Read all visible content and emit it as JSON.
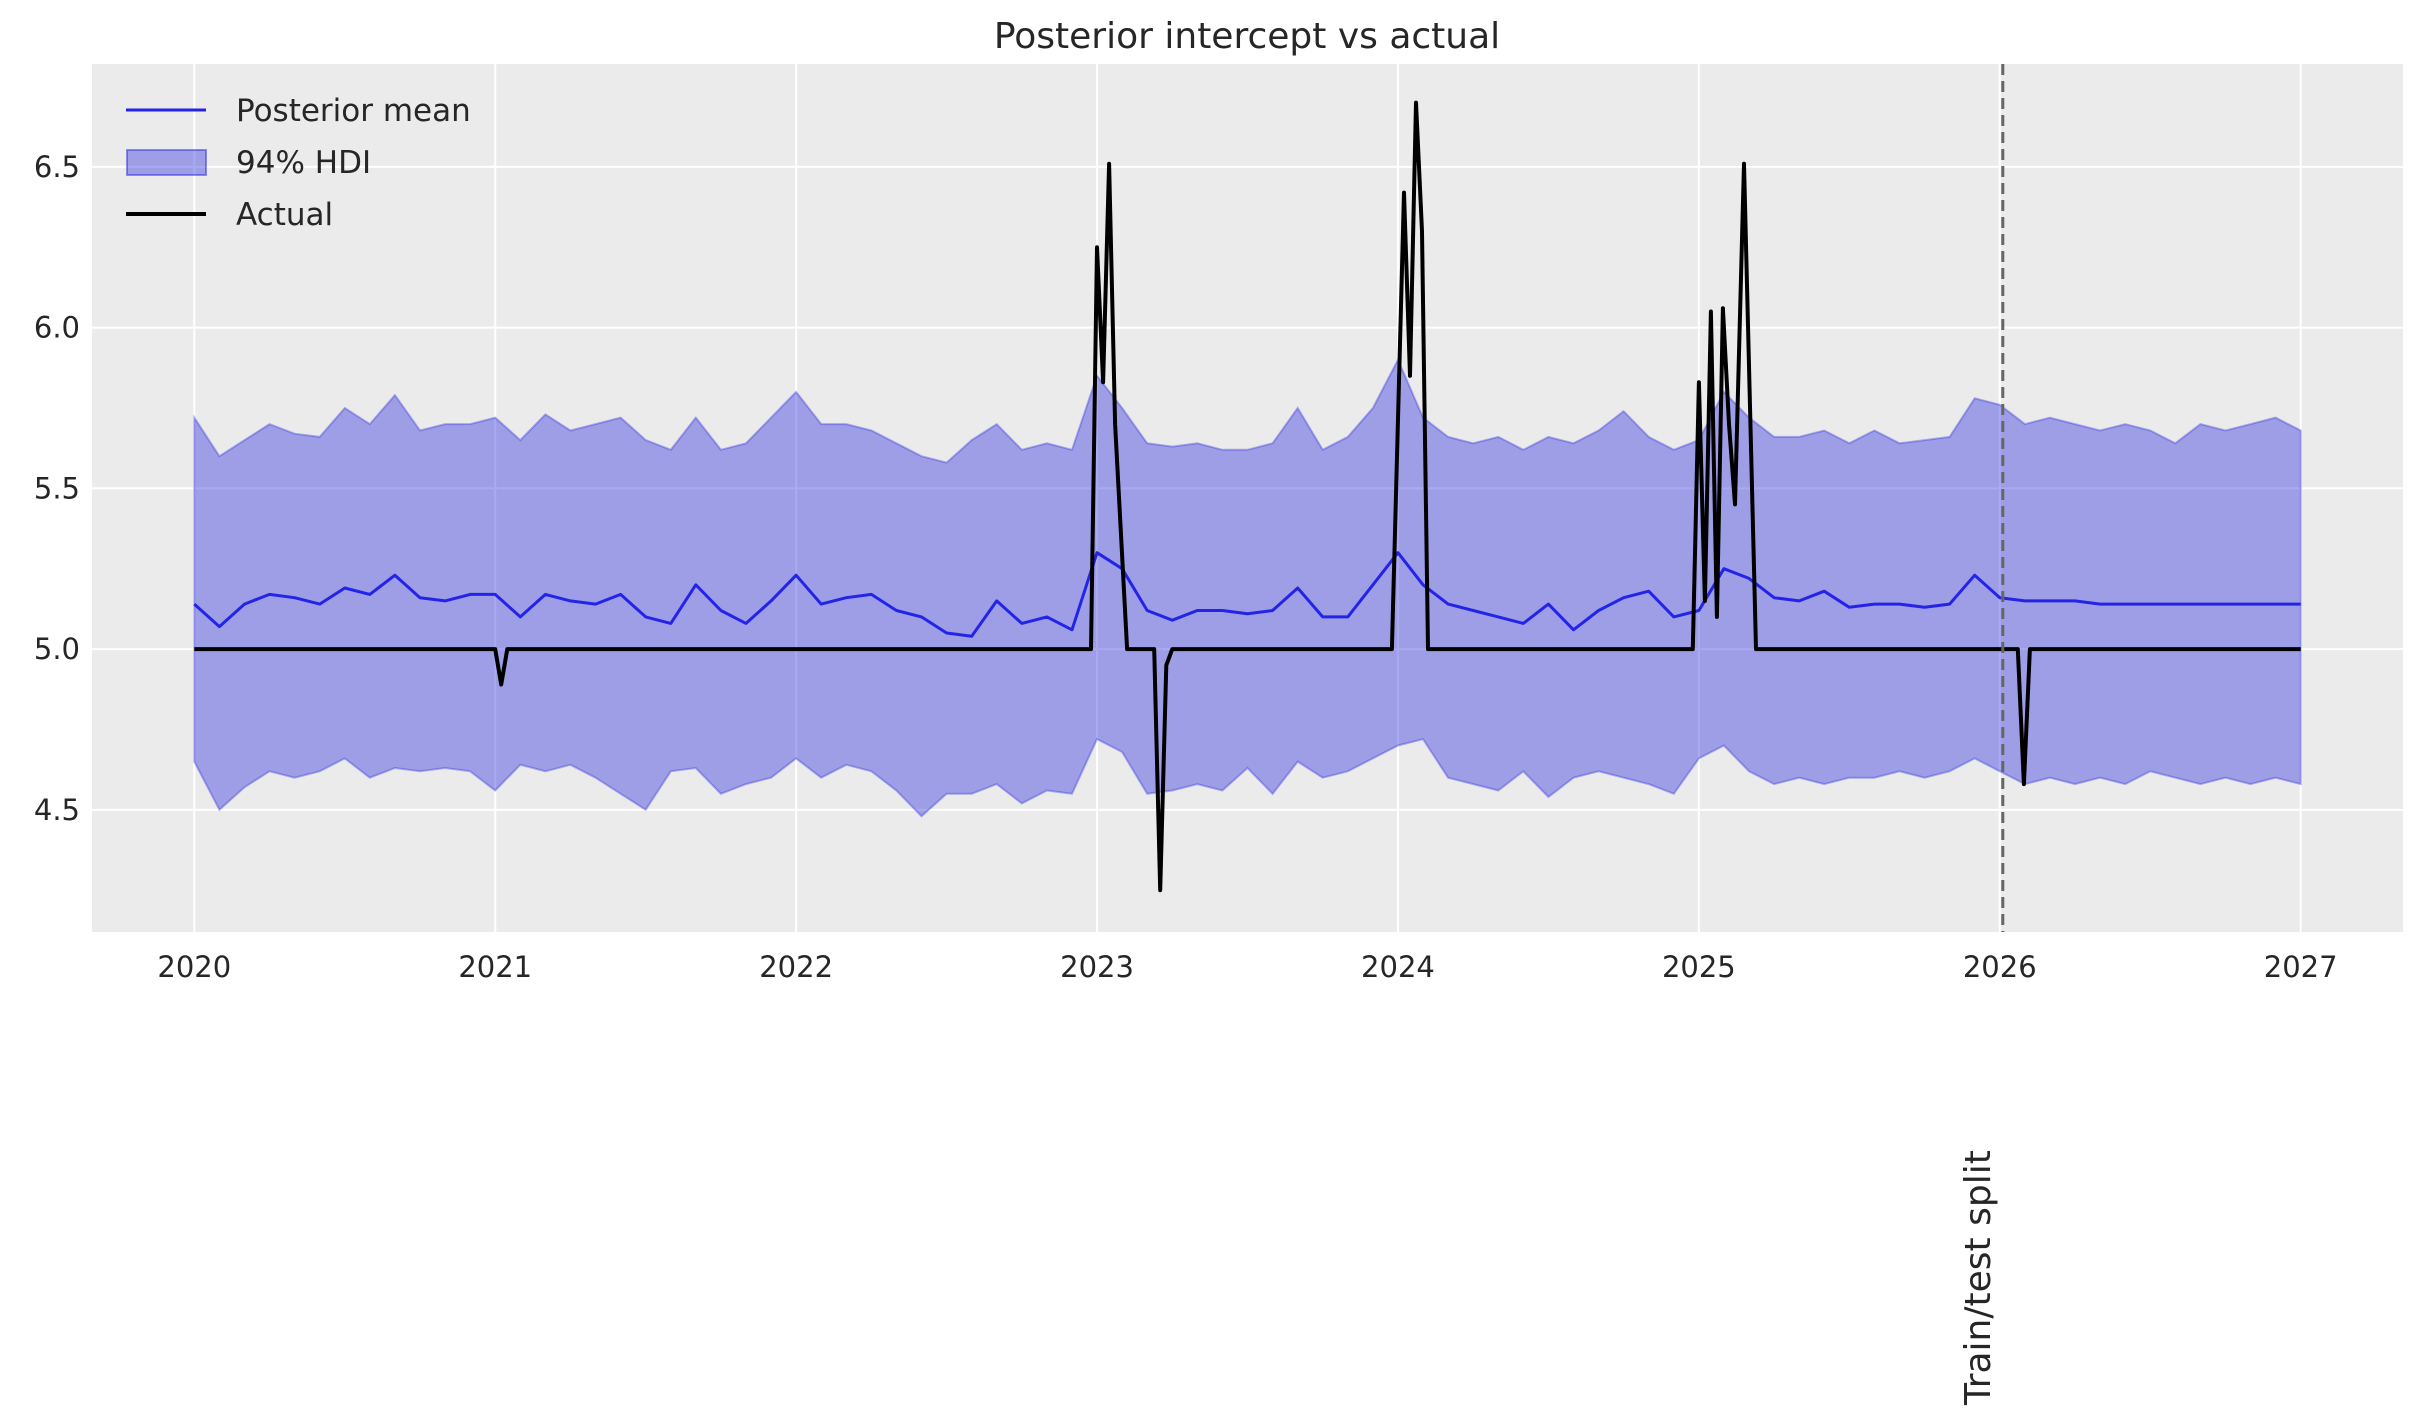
{
  "chart_data": {
    "type": "line",
    "title": "Posterior intercept vs actual",
    "xlabel": "",
    "ylabel": "",
    "xlim": [
      2019.66,
      2027.34
    ],
    "ylim": [
      4.12,
      6.82
    ],
    "grid": true,
    "legend_placement": "top-left",
    "x_ticks": [
      "2020",
      "2021",
      "2022",
      "2023",
      "2024",
      "2025",
      "2026",
      "2027"
    ],
    "y_ticks": [
      "4.5",
      "5.0",
      "5.5",
      "6.0",
      "6.5"
    ],
    "colors": {
      "background": "#ebebeb",
      "mean": "#2424e8",
      "hdi": "#2a2ae0",
      "actual": "#000000",
      "split": "#666666"
    },
    "legend": [
      "Posterior mean",
      "94% HDI",
      "Actual"
    ],
    "series": [
      {
        "name": "Posterior mean",
        "x_start": 2020,
        "x_step_months": 1,
        "values": [
          5.14,
          5.07,
          5.14,
          5.17,
          5.16,
          5.14,
          5.19,
          5.17,
          5.23,
          5.16,
          5.15,
          5.17,
          5.17,
          5.1,
          5.17,
          5.15,
          5.14,
          5.17,
          5.1,
          5.08,
          5.2,
          5.12,
          5.08,
          5.15,
          5.23,
          5.14,
          5.16,
          5.17,
          5.12,
          5.1,
          5.05,
          5.04,
          5.15,
          5.08,
          5.1,
          5.06,
          5.3,
          5.25,
          5.12,
          5.09,
          5.12,
          5.12,
          5.11,
          5.12,
          5.19,
          5.1,
          5.1,
          5.2,
          5.3,
          5.2,
          5.14,
          5.12,
          5.1,
          5.08,
          5.14,
          5.06,
          5.12,
          5.16,
          5.18,
          5.1,
          5.12,
          5.25,
          5.22,
          5.16,
          5.15,
          5.18,
          5.13,
          5.14,
          5.14,
          5.13,
          5.14,
          5.23,
          5.16,
          5.15,
          5.15,
          5.15,
          5.14,
          5.14,
          5.14,
          5.14,
          5.14,
          5.14,
          5.14,
          5.14,
          5.14
        ]
      },
      {
        "name": "94% HDI",
        "x_start": 2020,
        "x_step_months": 1,
        "upper": [
          5.72,
          5.6,
          5.65,
          5.7,
          5.67,
          5.66,
          5.75,
          5.7,
          5.79,
          5.68,
          5.7,
          5.7,
          5.72,
          5.65,
          5.73,
          5.68,
          5.7,
          5.72,
          5.65,
          5.62,
          5.72,
          5.62,
          5.64,
          5.72,
          5.8,
          5.7,
          5.7,
          5.68,
          5.64,
          5.6,
          5.58,
          5.65,
          5.7,
          5.62,
          5.64,
          5.62,
          5.85,
          5.75,
          5.64,
          5.63,
          5.64,
          5.62,
          5.62,
          5.64,
          5.75,
          5.62,
          5.66,
          5.75,
          5.9,
          5.72,
          5.66,
          5.64,
          5.66,
          5.62,
          5.66,
          5.64,
          5.68,
          5.74,
          5.66,
          5.62,
          5.65,
          5.8,
          5.72,
          5.66,
          5.66,
          5.68,
          5.64,
          5.68,
          5.64,
          5.65,
          5.66,
          5.78,
          5.76,
          5.7,
          5.72,
          5.7,
          5.68,
          5.7,
          5.68,
          5.64,
          5.7,
          5.68,
          5.7,
          5.72,
          5.68
        ],
        "lower": [
          4.65,
          4.5,
          4.57,
          4.62,
          4.6,
          4.62,
          4.66,
          4.6,
          4.63,
          4.62,
          4.63,
          4.62,
          4.56,
          4.64,
          4.62,
          4.64,
          4.6,
          4.55,
          4.5,
          4.62,
          4.63,
          4.55,
          4.58,
          4.6,
          4.66,
          4.6,
          4.64,
          4.62,
          4.56,
          4.48,
          4.55,
          4.55,
          4.58,
          4.52,
          4.56,
          4.55,
          4.72,
          4.68,
          4.55,
          4.56,
          4.58,
          4.56,
          4.63,
          4.55,
          4.65,
          4.6,
          4.62,
          4.66,
          4.7,
          4.72,
          4.6,
          4.58,
          4.56,
          4.62,
          4.54,
          4.6,
          4.62,
          4.6,
          4.58,
          4.55,
          4.66,
          4.7,
          4.62,
          4.58,
          4.6,
          4.58,
          4.6,
          4.6,
          4.62,
          4.6,
          4.62,
          4.66,
          4.62,
          4.58,
          4.6,
          4.58,
          4.6,
          4.58,
          4.62,
          4.6,
          4.58,
          4.6,
          4.58,
          4.6,
          4.58
        ]
      },
      {
        "name": "Actual",
        "points": [
          [
            2020.0,
            5.0
          ],
          [
            2021.0,
            5.0
          ],
          [
            2021.02,
            4.89
          ],
          [
            2021.04,
            5.0
          ],
          [
            2022.98,
            5.0
          ],
          [
            2023.0,
            6.25
          ],
          [
            2023.02,
            5.83
          ],
          [
            2023.04,
            6.51
          ],
          [
            2023.06,
            5.7
          ],
          [
            2023.1,
            5.0
          ],
          [
            2023.19,
            5.0
          ],
          [
            2023.21,
            4.25
          ],
          [
            2023.23,
            4.95
          ],
          [
            2023.25,
            5.0
          ],
          [
            2023.98,
            5.0
          ],
          [
            2024.02,
            6.42
          ],
          [
            2024.04,
            5.85
          ],
          [
            2024.06,
            6.7
          ],
          [
            2024.08,
            6.3
          ],
          [
            2024.1,
            5.0
          ],
          [
            2024.98,
            5.0
          ],
          [
            2025.0,
            5.83
          ],
          [
            2025.02,
            5.15
          ],
          [
            2025.04,
            6.05
          ],
          [
            2025.06,
            5.1
          ],
          [
            2025.08,
            6.06
          ],
          [
            2025.1,
            5.7
          ],
          [
            2025.12,
            5.45
          ],
          [
            2025.15,
            6.51
          ],
          [
            2025.19,
            5.0
          ],
          [
            2026.06,
            5.0
          ],
          [
            2026.08,
            4.58
          ],
          [
            2026.1,
            5.0
          ],
          [
            2027.0,
            5.0
          ]
        ]
      }
    ],
    "annotations": [
      {
        "type": "vline",
        "x": 2026.01,
        "label": "Train/test split"
      }
    ]
  }
}
